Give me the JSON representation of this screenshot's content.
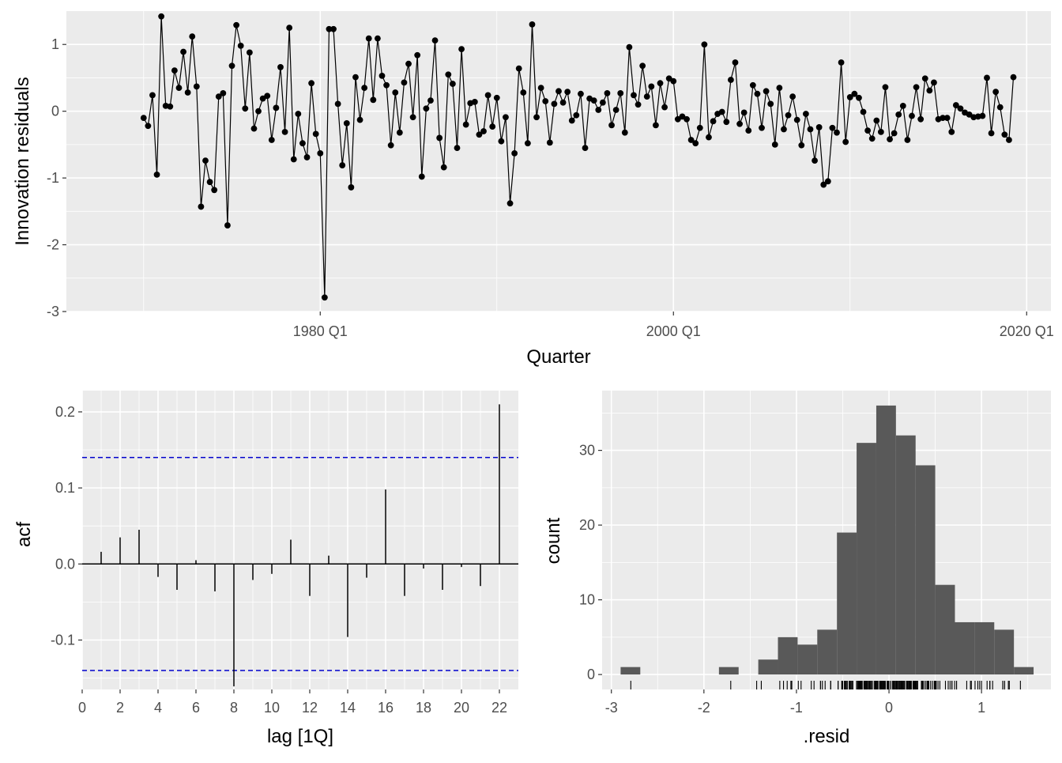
{
  "chart_data": [
    {
      "type": "line",
      "title": "",
      "xlabel": "Quarter",
      "ylabel": "Innovation residuals",
      "x_start": 1970.0,
      "x_step": 0.25,
      "xlim": [
        1965.625,
        2021.375
      ],
      "ylim": [
        -3.0,
        1.5
      ],
      "yticks": [
        -3,
        -2,
        -1,
        0,
        1
      ],
      "ytick_labels": [
        "-3",
        "-2",
        "-1",
        "0",
        "1"
      ],
      "xticks": [
        1980.0,
        2000.0,
        2020.0
      ],
      "xtick_labels": [
        "1980 Q1",
        "2000 Q1",
        "2020 Q1"
      ],
      "line_color": "#000000",
      "point_color": "#000000",
      "values": [
        -0.1,
        -0.22,
        0.24,
        -0.95,
        1.42,
        0.08,
        0.07,
        0.61,
        0.35,
        0.89,
        0.28,
        1.12,
        0.37,
        -1.43,
        -0.74,
        -1.06,
        -1.18,
        0.22,
        0.27,
        -1.71,
        0.68,
        1.29,
        0.98,
        0.04,
        0.88,
        -0.26,
        0.0,
        0.19,
        0.23,
        -0.43,
        0.05,
        0.66,
        -0.31,
        1.25,
        -0.72,
        -0.04,
        -0.48,
        -0.69,
        0.42,
        -0.34,
        -0.63,
        -2.79,
        1.23,
        1.23,
        0.11,
        -0.81,
        -0.18,
        -1.14,
        0.51,
        -0.13,
        0.35,
        1.09,
        0.17,
        1.09,
        0.53,
        0.39,
        -0.51,
        0.28,
        -0.32,
        0.43,
        0.71,
        -0.09,
        0.84,
        -0.98,
        0.04,
        0.16,
        1.06,
        -0.4,
        -0.84,
        0.55,
        0.41,
        -0.55,
        0.93,
        -0.2,
        0.12,
        0.14,
        -0.35,
        -0.3,
        0.24,
        -0.23,
        0.2,
        -0.45,
        -0.09,
        -1.38,
        -0.63,
        0.64,
        0.28,
        -0.48,
        1.3,
        -0.09,
        0.35,
        0.15,
        -0.47,
        0.11,
        0.3,
        0.13,
        0.29,
        -0.14,
        -0.06,
        0.26,
        -0.55,
        0.19,
        0.16,
        0.02,
        0.13,
        0.27,
        -0.21,
        0.02,
        0.27,
        -0.32,
        0.96,
        0.24,
        0.1,
        0.68,
        0.22,
        0.37,
        -0.21,
        0.42,
        0.06,
        0.49,
        0.45,
        -0.12,
        -0.08,
        -0.12,
        -0.43,
        -0.48,
        -0.25,
        1.0,
        -0.39,
        -0.15,
        -0.04,
        -0.01,
        -0.16,
        0.47,
        0.73,
        -0.19,
        -0.02,
        -0.29,
        0.39,
        0.26,
        -0.25,
        0.3,
        0.11,
        -0.5,
        0.35,
        -0.27,
        -0.06,
        0.22,
        -0.13,
        -0.51,
        -0.04,
        -0.27,
        -0.74,
        -0.24,
        -1.1,
        -1.05,
        -0.25,
        -0.32,
        0.73,
        -0.46,
        0.21,
        0.26,
        0.2,
        -0.01,
        -0.29,
        -0.41,
        -0.14,
        -0.31,
        0.36,
        -0.42,
        -0.33,
        -0.05,
        0.08,
        -0.43,
        -0.07,
        0.36,
        -0.12,
        0.49,
        0.31,
        0.43,
        -0.12,
        -0.1,
        -0.1,
        -0.31,
        0.09,
        0.04,
        -0.02,
        -0.05,
        -0.09,
        -0.08,
        -0.07,
        0.5,
        -0.33,
        0.29,
        0.06,
        -0.35,
        -0.43,
        0.51
      ]
    },
    {
      "type": "bar",
      "subtype": "acf",
      "title": "",
      "xlabel": "lag [1Q]",
      "ylabel": "acf",
      "lags": [
        1,
        2,
        3,
        4,
        5,
        6,
        7,
        8,
        9,
        10,
        11,
        12,
        13,
        14,
        15,
        16,
        17,
        18,
        19,
        20,
        21,
        22
      ],
      "values": [
        0.016,
        0.035,
        0.045,
        -0.017,
        -0.034,
        0.005,
        -0.036,
        -0.161,
        -0.021,
        -0.013,
        0.032,
        -0.042,
        0.011,
        -0.096,
        -0.018,
        0.098,
        -0.042,
        -0.006,
        -0.034,
        -0.004,
        -0.029,
        0.21
      ],
      "confidence_bound": 0.14,
      "bound_color": "#0000cc",
      "xlim": [
        -0.0,
        23.0
      ],
      "ylim": [
        -0.165,
        0.228
      ],
      "xticks": [
        0,
        2,
        4,
        6,
        8,
        10,
        12,
        14,
        16,
        18,
        20,
        22
      ],
      "xtick_labels": [
        "0",
        "2",
        "4",
        "6",
        "8",
        "10",
        "12",
        "14",
        "16",
        "18",
        "20",
        "22"
      ],
      "yticks": [
        -0.1,
        0.0,
        0.1,
        0.2
      ],
      "ytick_labels": [
        "-0.1",
        "0.0",
        "0.1",
        "0.2"
      ]
    },
    {
      "type": "bar",
      "subtype": "histogram",
      "title": "",
      "xlabel": ".resid",
      "ylabel": "count",
      "bin_width": 0.2125,
      "bin_start": -2.9,
      "counts": [
        1,
        0,
        0,
        0,
        0,
        1,
        0,
        2,
        5,
        4,
        6,
        19,
        31,
        36,
        32,
        28,
        12,
        7,
        7,
        6,
        1
      ],
      "bar_color": "#595959",
      "xlim": [
        -3.1,
        1.75
      ],
      "ylim": [
        -2.0,
        38.0
      ],
      "xticks": [
        -3,
        -2,
        -1,
        0,
        1
      ],
      "xtick_labels": [
        "-3",
        "-2",
        "-1",
        "0",
        "1"
      ],
      "yticks": [
        0,
        10,
        20,
        30
      ],
      "ytick_labels": [
        "0",
        "10",
        "20",
        "30"
      ],
      "rug": true
    }
  ]
}
